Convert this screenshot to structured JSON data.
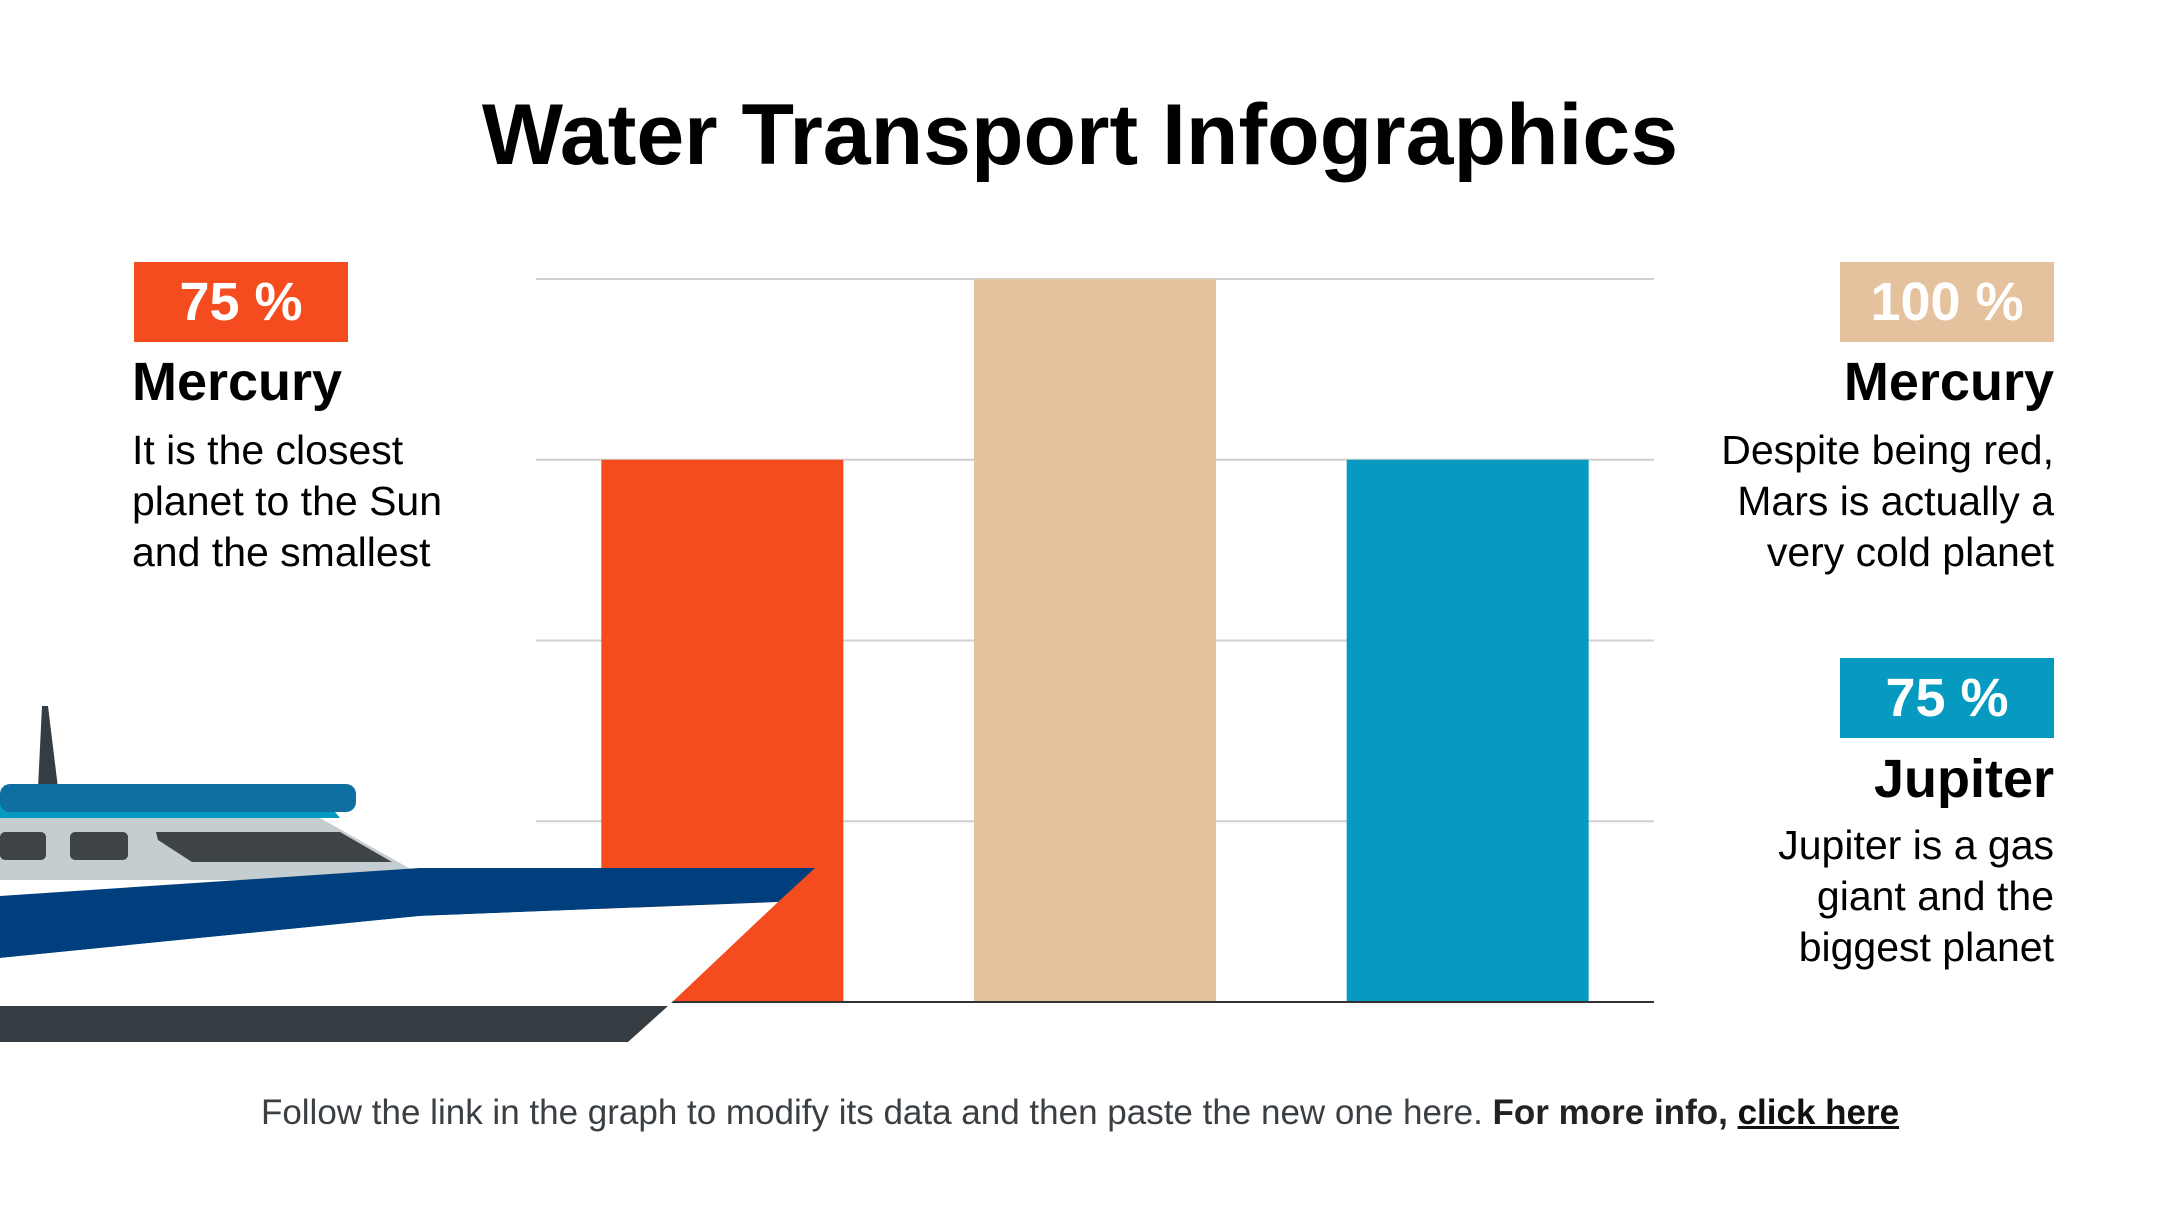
{
  "title": "Water Transport Infographics",
  "colors": {
    "orange": "#F44B1F",
    "tan": "#E4C29E",
    "blue": "#069AC1",
    "navy": "#003F7E",
    "dark": "#363D42",
    "grid": "#d0d0d0"
  },
  "chart_data": {
    "type": "bar",
    "categories": [
      "Mercury",
      "Mercury",
      "Jupiter"
    ],
    "values": [
      75,
      100,
      75
    ],
    "ylim": [
      0,
      100
    ],
    "grid": true,
    "title": "",
    "xlabel": "",
    "ylabel": ""
  },
  "left_card": {
    "badge": "75 %",
    "heading": "Mercury",
    "desc": [
      "It is the closest",
      "planet to the Sun",
      "and the smallest"
    ]
  },
  "right_top": {
    "badge": "100 %",
    "heading": "Mercury",
    "desc": [
      "Despite being red,",
      "Mars is actually a",
      "very cold planet"
    ]
  },
  "right_bottom": {
    "badge": "75 %",
    "heading": "Jupiter",
    "desc": [
      "Jupiter is a gas",
      "giant and the",
      "biggest planet"
    ]
  },
  "footer": {
    "text": "Follow the link in the graph to modify its data and then paste the new one here.",
    "bold": "For more info,",
    "link": "click here"
  }
}
